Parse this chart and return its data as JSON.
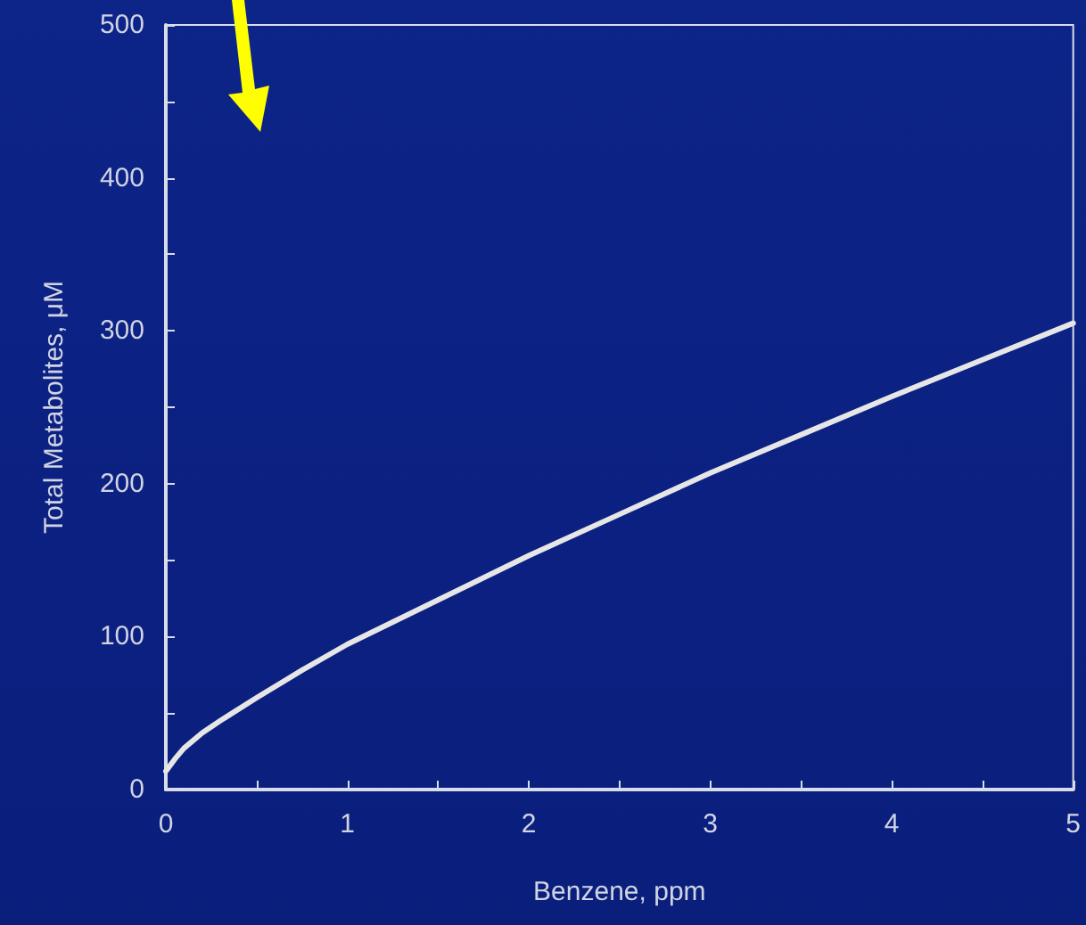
{
  "chart_data": {
    "type": "line",
    "xlabel": "Benzene, ppm",
    "ylabel": "Total Metabolites, μM",
    "x": [
      0,
      0.05,
      0.1,
      0.2,
      0.3,
      0.5,
      0.75,
      1,
      1.5,
      2,
      2.5,
      3,
      3.5,
      4,
      4.5,
      5
    ],
    "series": [
      {
        "color": "#e6e6e6",
        "values": [
          12,
          20,
          27,
          37,
          45,
          60,
          78,
          95,
          124,
          153,
          180,
          207,
          232,
          257,
          281,
          305
        ]
      }
    ],
    "xlim": [
      0,
      5
    ],
    "ylim": [
      0,
      500
    ],
    "xticks": [
      0,
      {
        "value": 0.5,
        "label": null
      },
      1,
      {
        "value": 1.5,
        "label": null
      },
      2,
      {
        "value": 2.5,
        "label": null
      },
      3,
      {
        "value": 3.5,
        "label": null
      },
      4,
      {
        "value": 4.5,
        "label": null
      },
      5
    ],
    "yticks": [
      0,
      {
        "value": 50,
        "label": null
      },
      100,
      {
        "value": 150,
        "label": null
      },
      200,
      {
        "value": 250,
        "label": null
      },
      300,
      {
        "value": 350,
        "label": null
      },
      400,
      {
        "value": 450,
        "label": null
      },
      500
    ],
    "grid": false,
    "marker": "none",
    "line_style": "solid"
  }
}
